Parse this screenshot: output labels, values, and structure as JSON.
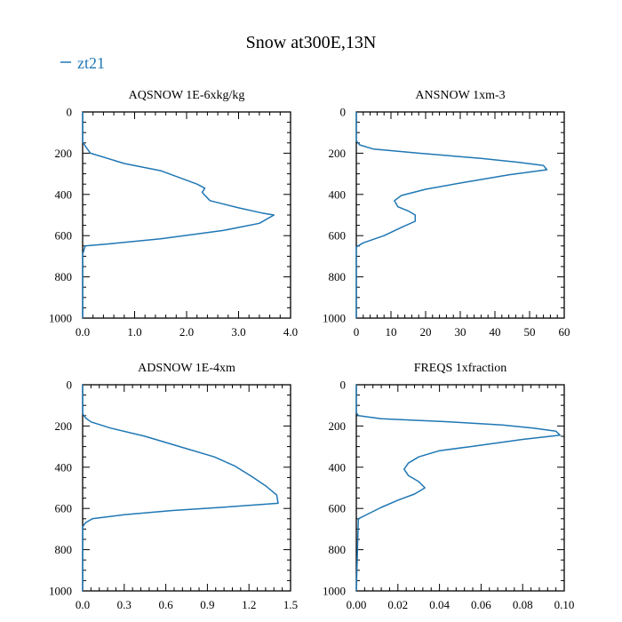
{
  "page_title": "Snow at300E,13N",
  "legend": {
    "label": "zt21",
    "color": "#1f77b4"
  },
  "chart_data": [
    {
      "type": "line",
      "title": "AQSNOW  1E-6xkg/kg",
      "xlim": [
        0,
        4
      ],
      "ylim": [
        0,
        1000
      ],
      "x_ticks": [
        "0.0",
        "1.0",
        "2.0",
        "3.0",
        "4.0"
      ],
      "x_tick_values": [
        0,
        1,
        2,
        3,
        4
      ],
      "y_ticks": [
        "0",
        "200",
        "400",
        "600",
        "800",
        "1000"
      ],
      "y_tick_values": [
        0,
        200,
        400,
        600,
        800,
        1000
      ],
      "series": [
        {
          "name": "zt21",
          "points": [
            [
              0,
              0
            ],
            [
              0,
              145
            ],
            [
              0.05,
              165
            ],
            [
              0.15,
              200
            ],
            [
              0.8,
              250
            ],
            [
              1.5,
              285
            ],
            [
              2.2,
              350
            ],
            [
              2.35,
              370
            ],
            [
              2.3,
              390
            ],
            [
              2.45,
              430
            ],
            [
              3.0,
              465
            ],
            [
              3.45,
              490
            ],
            [
              3.68,
              500
            ],
            [
              3.4,
              540
            ],
            [
              2.7,
              575
            ],
            [
              1.5,
              615
            ],
            [
              0.5,
              640
            ],
            [
              0.05,
              650
            ],
            [
              0,
              690
            ],
            [
              0,
              1000
            ]
          ]
        }
      ]
    },
    {
      "type": "line",
      "title": "ANSNOW  1xm-3",
      "xlim": [
        0,
        60
      ],
      "ylim": [
        0,
        1000
      ],
      "x_ticks": [
        "0",
        "10",
        "20",
        "30",
        "40",
        "50",
        "60"
      ],
      "x_tick_values": [
        0,
        10,
        20,
        30,
        40,
        50,
        60
      ],
      "y_ticks": [
        "0",
        "200",
        "400",
        "600",
        "800",
        "1000"
      ],
      "y_tick_values": [
        0,
        200,
        400,
        600,
        800,
        1000
      ],
      "series": [
        {
          "name": "zt21",
          "points": [
            [
              0,
              0
            ],
            [
              0,
              140
            ],
            [
              1,
              160
            ],
            [
              5,
              180
            ],
            [
              18,
              200
            ],
            [
              36,
              225
            ],
            [
              47,
              245
            ],
            [
              54,
              260
            ],
            [
              55,
              280
            ],
            [
              44,
              305
            ],
            [
              30,
              345
            ],
            [
              20,
              375
            ],
            [
              13,
              405
            ],
            [
              11,
              430
            ],
            [
              12,
              460
            ],
            [
              15,
              480
            ],
            [
              17,
              500
            ],
            [
              17,
              530
            ],
            [
              13,
              560
            ],
            [
              8,
              600
            ],
            [
              2,
              635
            ],
            [
              0,
              655
            ],
            [
              0,
              1000
            ]
          ]
        }
      ]
    },
    {
      "type": "line",
      "title": "ADSNOW  1E-4xm",
      "xlim": [
        0,
        1.5
      ],
      "ylim": [
        0,
        1000
      ],
      "x_ticks": [
        "0.0",
        "0.3",
        "0.6",
        "0.9",
        "1.2",
        "1.5"
      ],
      "x_tick_values": [
        0,
        0.3,
        0.6,
        0.9,
        1.2,
        1.5
      ],
      "y_ticks": [
        "0",
        "200",
        "400",
        "600",
        "800",
        "1000"
      ],
      "y_tick_values": [
        0,
        200,
        400,
        600,
        800,
        1000
      ],
      "series": [
        {
          "name": "zt21",
          "points": [
            [
              0,
              0
            ],
            [
              0,
              140
            ],
            [
              0.02,
              160
            ],
            [
              0.06,
              180
            ],
            [
              0.2,
              210
            ],
            [
              0.45,
              250
            ],
            [
              0.7,
              300
            ],
            [
              0.95,
              350
            ],
            [
              1.1,
              395
            ],
            [
              1.22,
              445
            ],
            [
              1.32,
              490
            ],
            [
              1.4,
              535
            ],
            [
              1.41,
              575
            ],
            [
              1.0,
              595
            ],
            [
              0.65,
              610
            ],
            [
              0.3,
              630
            ],
            [
              0.07,
              650
            ],
            [
              0.02,
              670
            ],
            [
              0,
              690
            ],
            [
              0,
              1000
            ]
          ]
        }
      ]
    },
    {
      "type": "line",
      "title": "FREQS  1xfraction",
      "xlim": [
        0,
        0.1
      ],
      "ylim": [
        0,
        1000
      ],
      "x_ticks": [
        "0.00",
        "0.02",
        "0.04",
        "0.06",
        "0.08",
        "0.10"
      ],
      "x_tick_values": [
        0,
        0.02,
        0.04,
        0.06,
        0.08,
        0.1
      ],
      "y_ticks": [
        "0",
        "200",
        "400",
        "600",
        "800",
        "1000"
      ],
      "y_tick_values": [
        0,
        200,
        400,
        600,
        800,
        1000
      ],
      "series": [
        {
          "name": "zt21",
          "points": [
            [
              0,
              0
            ],
            [
              0,
              135
            ],
            [
              0.001,
              150
            ],
            [
              0.012,
              165
            ],
            [
              0.045,
              180
            ],
            [
              0.07,
              195
            ],
            [
              0.085,
              210
            ],
            [
              0.096,
              225
            ],
            [
              0.098,
              245
            ],
            [
              0.08,
              265
            ],
            [
              0.055,
              300
            ],
            [
              0.04,
              320
            ],
            [
              0.03,
              350
            ],
            [
              0.025,
              380
            ],
            [
              0.023,
              410
            ],
            [
              0.025,
              440
            ],
            [
              0.03,
              470
            ],
            [
              0.033,
              500
            ],
            [
              0.028,
              530
            ],
            [
              0.02,
              560
            ],
            [
              0.012,
              595
            ],
            [
              0.006,
              625
            ],
            [
              0.001,
              650
            ],
            [
              0,
              1000
            ]
          ]
        }
      ]
    }
  ]
}
